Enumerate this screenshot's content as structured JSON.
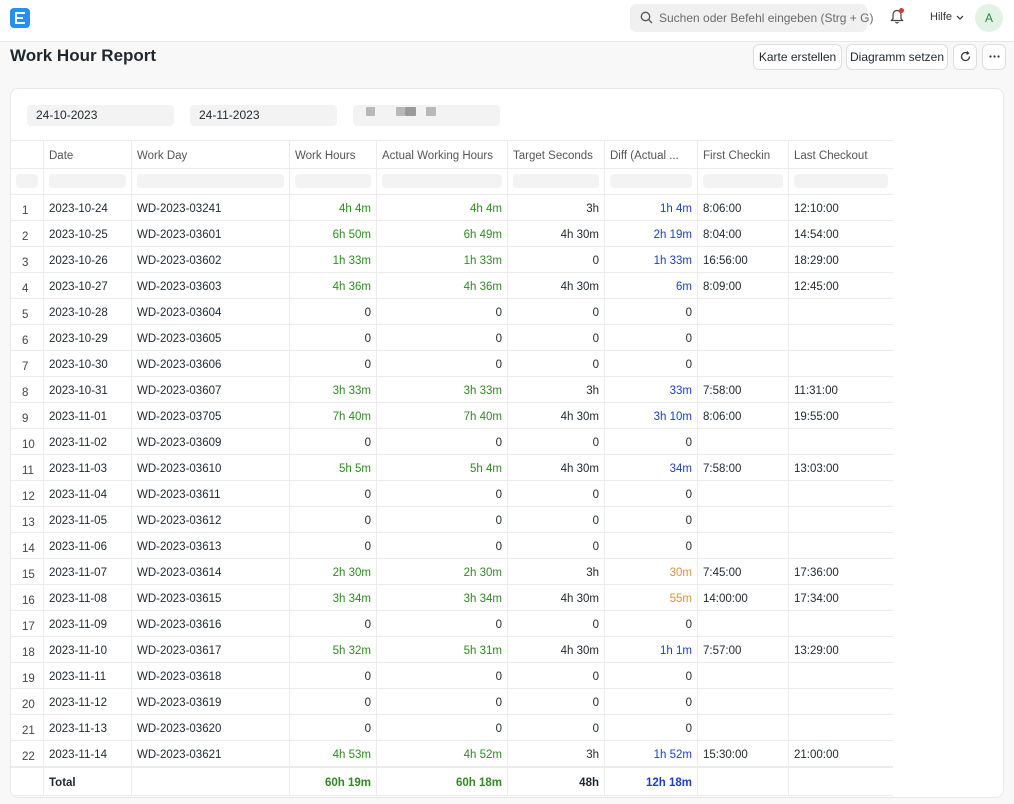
{
  "navbar": {
    "search_placeholder": "Suchen oder Befehl eingeben (Strg + G)",
    "help_label": "Hilfe",
    "avatar_initial": "A"
  },
  "page": {
    "title": "Work Hour Report",
    "buttons": {
      "karte": "Karte erstellen",
      "diagramm": "Diagramm setzen"
    }
  },
  "filters": {
    "from_date": "24-10-2023",
    "to_date": "24-11-2023"
  },
  "columns": [
    "Date",
    "Work Day",
    "Work Hours",
    "Actual Working Hours",
    "Target Seconds",
    "Diff (Actual ...",
    "First Checkin",
    "Last Checkout"
  ],
  "rows": [
    {
      "n": "1",
      "date": "2023-10-24",
      "wd": "WD-2023-03241",
      "wh": "4h 4m",
      "awh": "4h 4m",
      "ts": "3h",
      "diff": "1h 4m",
      "fc": "8:06:00",
      "lc": "12:10:00"
    },
    {
      "n": "2",
      "date": "2023-10-25",
      "wd": "WD-2023-03601",
      "wh": "6h 50m",
      "awh": "6h 49m",
      "ts": "4h 30m",
      "diff": "2h 19m",
      "fc": "8:04:00",
      "lc": "14:54:00"
    },
    {
      "n": "3",
      "date": "2023-10-26",
      "wd": "WD-2023-03602",
      "wh": "1h 33m",
      "awh": "1h 33m",
      "ts": "0",
      "diff": "1h 33m",
      "fc": "16:56:00",
      "lc": "18:29:00"
    },
    {
      "n": "4",
      "date": "2023-10-27",
      "wd": "WD-2023-03603",
      "wh": "4h 36m",
      "awh": "4h 36m",
      "ts": "4h 30m",
      "diff": "6m",
      "fc": "8:09:00",
      "lc": "12:45:00"
    },
    {
      "n": "5",
      "date": "2023-10-28",
      "wd": "WD-2023-03604",
      "wh": "0",
      "awh": "0",
      "ts": "0",
      "diff": "0",
      "fc": "",
      "lc": ""
    },
    {
      "n": "6",
      "date": "2023-10-29",
      "wd": "WD-2023-03605",
      "wh": "0",
      "awh": "0",
      "ts": "0",
      "diff": "0",
      "fc": "",
      "lc": ""
    },
    {
      "n": "7",
      "date": "2023-10-30",
      "wd": "WD-2023-03606",
      "wh": "0",
      "awh": "0",
      "ts": "0",
      "diff": "0",
      "fc": "",
      "lc": ""
    },
    {
      "n": "8",
      "date": "2023-10-31",
      "wd": "WD-2023-03607",
      "wh": "3h 33m",
      "awh": "3h 33m",
      "ts": "3h",
      "diff": "33m",
      "fc": "7:58:00",
      "lc": "11:31:00"
    },
    {
      "n": "9",
      "date": "2023-11-01",
      "wd": "WD-2023-03705",
      "wh": "7h 40m",
      "awh": "7h 40m",
      "ts": "4h 30m",
      "diff": "3h 10m",
      "fc": "8:06:00",
      "lc": "19:55:00"
    },
    {
      "n": "10",
      "date": "2023-11-02",
      "wd": "WD-2023-03609",
      "wh": "0",
      "awh": "0",
      "ts": "0",
      "diff": "0",
      "fc": "",
      "lc": ""
    },
    {
      "n": "11",
      "date": "2023-11-03",
      "wd": "WD-2023-03610",
      "wh": "5h 5m",
      "awh": "5h 4m",
      "ts": "4h 30m",
      "diff": "34m",
      "fc": "7:58:00",
      "lc": "13:03:00"
    },
    {
      "n": "12",
      "date": "2023-11-04",
      "wd": "WD-2023-03611",
      "wh": "0",
      "awh": "0",
      "ts": "0",
      "diff": "0",
      "fc": "",
      "lc": ""
    },
    {
      "n": "13",
      "date": "2023-11-05",
      "wd": "WD-2023-03612",
      "wh": "0",
      "awh": "0",
      "ts": "0",
      "diff": "0",
      "fc": "",
      "lc": ""
    },
    {
      "n": "14",
      "date": "2023-11-06",
      "wd": "WD-2023-03613",
      "wh": "0",
      "awh": "0",
      "ts": "0",
      "diff": "0",
      "fc": "",
      "lc": ""
    },
    {
      "n": "15",
      "date": "2023-11-07",
      "wd": "WD-2023-03614",
      "wh": "2h 30m",
      "awh": "2h 30m",
      "ts": "3h",
      "diff": "30m",
      "fc": "7:45:00",
      "lc": "17:36:00"
    },
    {
      "n": "16",
      "date": "2023-11-08",
      "wd": "WD-2023-03615",
      "wh": "3h 34m",
      "awh": "3h 34m",
      "ts": "4h 30m",
      "diff": "55m",
      "fc": "14:00:00",
      "lc": "17:34:00"
    },
    {
      "n": "17",
      "date": "2023-11-09",
      "wd": "WD-2023-03616",
      "wh": "0",
      "awh": "0",
      "ts": "0",
      "diff": "0",
      "fc": "",
      "lc": ""
    },
    {
      "n": "18",
      "date": "2023-11-10",
      "wd": "WD-2023-03617",
      "wh": "5h 32m",
      "awh": "5h 31m",
      "ts": "4h 30m",
      "diff": "1h 1m",
      "fc": "7:57:00",
      "lc": "13:29:00"
    },
    {
      "n": "19",
      "date": "2023-11-11",
      "wd": "WD-2023-03618",
      "wh": "0",
      "awh": "0",
      "ts": "0",
      "diff": "0",
      "fc": "",
      "lc": ""
    },
    {
      "n": "20",
      "date": "2023-11-12",
      "wd": "WD-2023-03619",
      "wh": "0",
      "awh": "0",
      "ts": "0",
      "diff": "0",
      "fc": "",
      "lc": ""
    },
    {
      "n": "21",
      "date": "2023-11-13",
      "wd": "WD-2023-03620",
      "wh": "0",
      "awh": "0",
      "ts": "0",
      "diff": "0",
      "fc": "",
      "lc": ""
    },
    {
      "n": "22",
      "date": "2023-11-14",
      "wd": "WD-2023-03621",
      "wh": "4h 53m",
      "awh": "4h 52m",
      "ts": "3h",
      "diff": "1h 52m",
      "fc": "15:30:00",
      "lc": "21:00:00"
    }
  ],
  "diff_colors": {
    "1": "blue",
    "2": "blue",
    "3": "blue",
    "4": "blue",
    "8": "blue",
    "9": "blue",
    "11": "blue",
    "15": "orange",
    "16": "orange",
    "18": "blue",
    "22": "blue"
  },
  "total": {
    "label": "Total",
    "wh": "60h 19m",
    "awh": "60h 18m",
    "ts": "48h",
    "diff": "12h 18m"
  },
  "colors": {
    "accent": "#2490ef",
    "positive": "#2e8b20",
    "diff_over": "#1c3ec9",
    "diff_under": "#e7902e"
  }
}
